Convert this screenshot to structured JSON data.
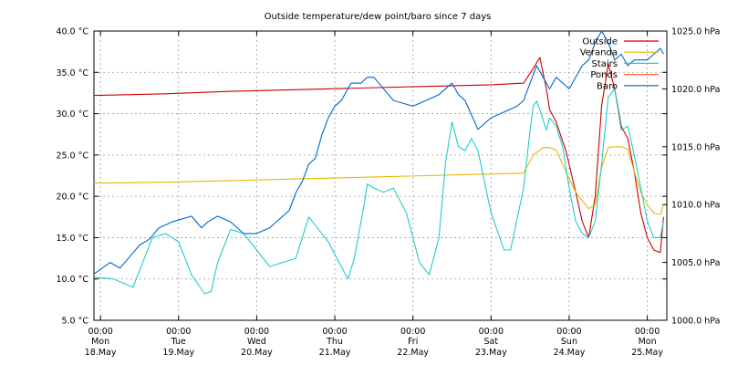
{
  "chart_data": {
    "type": "line",
    "title": "Outside temperature/dew point/baro since 7 days",
    "y_left": {
      "unit": "°C",
      "min": 5,
      "max": 40,
      "ticks": [
        5,
        10,
        15,
        20,
        25,
        30,
        35,
        40
      ],
      "tick_labels": [
        "5.0 °C",
        "10.0 °C",
        "15.0 °C",
        "20.0 °C",
        "25.0 °C",
        "30.0 °C",
        "35.0 °C",
        "40.0 °C"
      ]
    },
    "y_right": {
      "unit": "hPa",
      "min": 1000,
      "max": 1025,
      "ticks": [
        1000,
        1005,
        1010,
        1015,
        1020,
        1025
      ],
      "tick_labels": [
        "1000.0 hPa",
        "1005.0 hPa",
        "1010.0 hPa",
        "1015.0 hPa",
        "1020.0 hPa",
        "1025.0 hPa"
      ]
    },
    "x_unit": "hours since Mon 18.May 00:00",
    "x_range": [
      -2,
      174
    ],
    "x_ticks": [
      {
        "x": 0,
        "time": "00:00",
        "day": "Mon",
        "date": "18.May"
      },
      {
        "x": 24,
        "time": "00:00",
        "day": "Tue",
        "date": "19.May"
      },
      {
        "x": 48,
        "time": "00:00",
        "day": "Wed",
        "date": "20.May"
      },
      {
        "x": 72,
        "time": "00:00",
        "day": "Thu",
        "date": "21.May"
      },
      {
        "x": 96,
        "time": "00:00",
        "day": "Fri",
        "date": "22.May"
      },
      {
        "x": 120,
        "time": "00:00",
        "day": "Sat",
        "date": "23.May"
      },
      {
        "x": 144,
        "time": "00:00",
        "day": "Sun",
        "date": "24.May"
      },
      {
        "x": 168,
        "time": "00:00",
        "day": "Mon",
        "date": "25.May"
      }
    ],
    "grid": true,
    "legend_position": "top-right",
    "series": [
      {
        "name": "Outside",
        "color": "#cc0000",
        "axis": "left",
        "x": [
          -2,
          20,
          40,
          60,
          80,
          100,
          120,
          130,
          133,
          135,
          137,
          138,
          140,
          143,
          146,
          148,
          150,
          152,
          154,
          156,
          158,
          160,
          162,
          164,
          166,
          168,
          170,
          172,
          173
        ],
        "y": [
          32.2,
          32.4,
          32.7,
          32.9,
          33.1,
          33.3,
          33.5,
          33.7,
          35.5,
          36.8,
          33.0,
          30.5,
          29.0,
          25.5,
          20.5,
          17.0,
          15.0,
          20.0,
          31.0,
          36.0,
          33.0,
          28.5,
          27.0,
          23.0,
          18.0,
          15.0,
          13.5,
          13.2,
          17.5
        ]
      },
      {
        "name": "Veranda",
        "color": "#e6b800",
        "axis": "left",
        "x": [
          -2,
          20,
          40,
          60,
          80,
          100,
          120,
          130,
          133,
          136,
          138,
          140,
          143,
          146,
          148,
          150,
          152,
          154,
          156,
          158,
          160,
          162,
          164,
          166,
          168,
          170,
          172,
          173
        ],
        "y": [
          21.6,
          21.7,
          21.9,
          22.1,
          22.3,
          22.5,
          22.7,
          22.8,
          25.0,
          25.9,
          25.9,
          25.6,
          23.0,
          20.5,
          19.5,
          18.5,
          19.0,
          23.5,
          25.9,
          26.0,
          26.0,
          25.7,
          23.0,
          20.5,
          19.0,
          18.0,
          17.8,
          19.0
        ]
      },
      {
        "name": "Stairs",
        "color": "#22cccc",
        "axis": "left",
        "x": [
          -2,
          4,
          7,
          10,
          13,
          16,
          20,
          24,
          28,
          32,
          34,
          36,
          40,
          44,
          48,
          52,
          56,
          60,
          62,
          64,
          66,
          70,
          74,
          76,
          78,
          81,
          82,
          84,
          87,
          90,
          94,
          98,
          101,
          104,
          106,
          108,
          110,
          112,
          114,
          116,
          120,
          124,
          126,
          130,
          132,
          133,
          134,
          135,
          137,
          138,
          140,
          142,
          144,
          146,
          148,
          150,
          152,
          154,
          156,
          158,
          160,
          162,
          164,
          166,
          168,
          170,
          172,
          173
        ],
        "y": [
          10.2,
          10.0,
          9.5,
          9.0,
          12.0,
          15.0,
          15.5,
          14.5,
          10.5,
          8.2,
          8.5,
          12.0,
          16.0,
          15.5,
          13.5,
          11.5,
          12.0,
          12.5,
          15.0,
          17.5,
          16.5,
          14.5,
          11.5,
          10.0,
          12.5,
          19.0,
          21.5,
          21.0,
          20.5,
          21.0,
          18.0,
          12.0,
          10.5,
          15.0,
          24.0,
          29.0,
          26.0,
          25.5,
          27.0,
          25.5,
          18.0,
          13.5,
          13.5,
          21.0,
          28.0,
          31.0,
          31.5,
          30.5,
          28.0,
          29.5,
          28.5,
          26.0,
          21.0,
          17.0,
          15.5,
          15.0,
          17.0,
          24.0,
          32.0,
          33.0,
          28.0,
          28.5,
          25.0,
          21.0,
          17.0,
          15.0,
          15.0,
          17.0
        ]
      },
      {
        "name": "Ponds",
        "color": "#ff6633",
        "axis": "left",
        "x": [],
        "y": []
      },
      {
        "name": "Baro",
        "color": "#0066cc",
        "axis": "right",
        "x": [
          -2,
          3,
          6,
          9,
          12,
          15,
          18,
          22,
          28,
          31,
          33,
          36,
          40,
          44,
          48,
          52,
          56,
          58,
          60,
          62,
          64,
          66,
          68,
          70,
          72,
          74,
          77,
          80,
          82,
          84,
          90,
          96,
          100,
          104,
          108,
          110,
          112,
          116,
          118,
          120,
          124,
          128,
          130,
          132,
          134,
          136,
          138,
          140,
          144,
          148,
          150,
          152,
          154,
          156,
          158,
          160,
          162,
          164,
          166,
          168,
          170,
          172,
          173
        ],
        "y": [
          1004.0,
          1005.0,
          1004.5,
          1005.5,
          1006.5,
          1007.0,
          1008.0,
          1008.5,
          1009.0,
          1008.0,
          1008.5,
          1009.0,
          1008.5,
          1007.5,
          1007.5,
          1008.0,
          1009.0,
          1009.5,
          1011.0,
          1012.0,
          1013.5,
          1014.0,
          1016.0,
          1017.5,
          1018.5,
          1019.0,
          1020.5,
          1020.5,
          1021.0,
          1021.0,
          1019.0,
          1018.5,
          1019.0,
          1019.5,
          1020.5,
          1019.5,
          1019.0,
          1016.5,
          1017.0,
          1017.5,
          1018.0,
          1018.5,
          1019.0,
          1020.5,
          1022.0,
          1021.0,
          1020.0,
          1021.0,
          1020.0,
          1022.0,
          1022.5,
          1024.0,
          1025.0,
          1024.0,
          1022.5,
          1023.0,
          1022.0,
          1022.5,
          1022.5,
          1022.5,
          1023.0,
          1023.5,
          1023.0
        ]
      }
    ]
  }
}
